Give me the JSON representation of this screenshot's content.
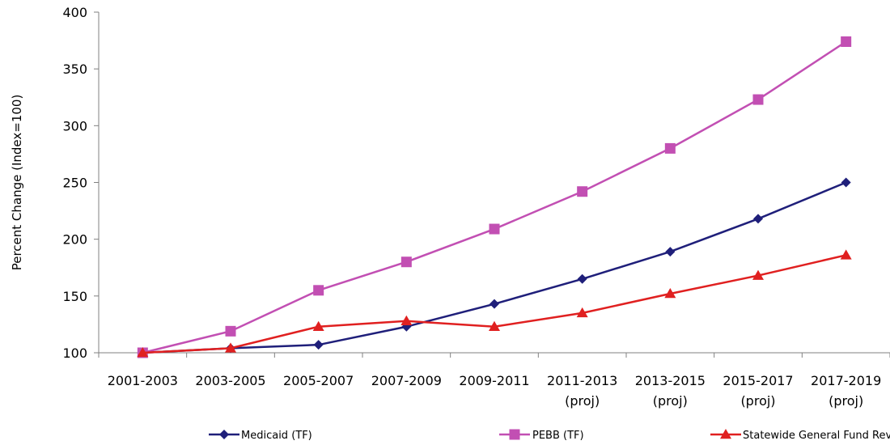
{
  "chart_data": {
    "type": "line",
    "title": "",
    "xlabel": "",
    "ylabel": "Percent Change (Index=100)",
    "ylim": [
      100,
      400
    ],
    "yticks": [
      100,
      150,
      200,
      250,
      300,
      350,
      400
    ],
    "grid": false,
    "legend_position": "bottom",
    "categories": [
      [
        "2001-2003"
      ],
      [
        "2003-2005"
      ],
      [
        "2005-2007"
      ],
      [
        "2007-2009"
      ],
      [
        "2009-2011"
      ],
      [
        "2011-2013",
        "(proj)"
      ],
      [
        "2013-2015",
        "(proj)"
      ],
      [
        "2015-2017",
        "(proj)"
      ],
      [
        "2017-2019",
        "(proj)"
      ]
    ],
    "series": [
      {
        "name": "Medicaid (TF)",
        "color": "#1f1f7a",
        "marker": "diamond",
        "values": [
          100,
          104,
          107,
          123,
          143,
          165,
          189,
          218,
          250
        ]
      },
      {
        "name": "PEBB (TF)",
        "color": "#c24fb3",
        "marker": "square",
        "values": [
          100,
          119,
          155,
          180,
          209,
          242,
          280,
          323,
          374
        ]
      },
      {
        "name": "Statewide General Fund Revenue",
        "color": "#e02020",
        "marker": "triangle",
        "values": [
          100,
          104,
          123,
          128,
          123,
          135,
          152,
          168,
          186
        ]
      }
    ]
  }
}
